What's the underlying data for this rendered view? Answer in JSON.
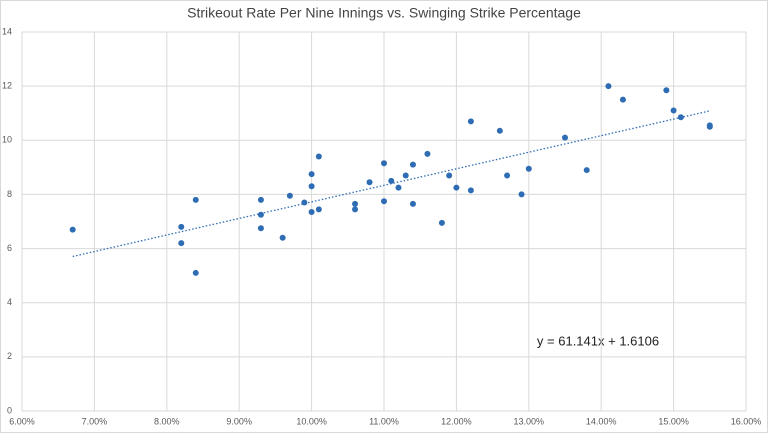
{
  "chart_data": {
    "type": "scatter",
    "title": "Strikeout Rate Per Nine Innings vs. Swinging Strike Percentage",
    "color": "#2e6db4",
    "grid": true,
    "xlim": [
      0.06,
      0.16
    ],
    "xticks": [
      {
        "value": 0.06,
        "label": "6.00%"
      },
      {
        "value": 0.07,
        "label": "7.00%"
      },
      {
        "value": 0.08,
        "label": "8.00%"
      },
      {
        "value": 0.09,
        "label": "9.00%"
      },
      {
        "value": 0.1,
        "label": "10.00%"
      },
      {
        "value": 0.11,
        "label": "11.00%"
      },
      {
        "value": 0.12,
        "label": "12.00%"
      },
      {
        "value": 0.13,
        "label": "13.00%"
      },
      {
        "value": 0.14,
        "label": "14.00%"
      },
      {
        "value": 0.15,
        "label": "15.00%"
      },
      {
        "value": 0.16,
        "label": "16.00%"
      }
    ],
    "ylim": [
      0,
      14
    ],
    "yticks": [
      0,
      2,
      4,
      6,
      8,
      10,
      12,
      14
    ],
    "x": [
      0.067,
      0.082,
      0.082,
      0.084,
      0.084,
      0.093,
      0.093,
      0.093,
      0.096,
      0.097,
      0.099,
      0.1,
      0.1,
      0.1,
      0.101,
      0.101,
      0.106,
      0.106,
      0.108,
      0.11,
      0.11,
      0.111,
      0.112,
      0.113,
      0.114,
      0.114,
      0.116,
      0.118,
      0.119,
      0.12,
      0.122,
      0.122,
      0.126,
      0.127,
      0.129,
      0.13,
      0.135,
      0.138,
      0.141,
      0.143,
      0.149,
      0.15,
      0.151,
      0.155,
      0.155
    ],
    "values": [
      6.7,
      6.8,
      6.2,
      7.8,
      5.1,
      7.8,
      7.25,
      6.75,
      6.4,
      7.95,
      7.7,
      8.75,
      8.3,
      7.35,
      9.4,
      7.45,
      7.65,
      7.45,
      8.45,
      9.15,
      7.75,
      8.5,
      8.25,
      8.7,
      9.1,
      7.65,
      9.5,
      6.95,
      8.7,
      8.25,
      10.7,
      8.15,
      10.35,
      8.7,
      8.0,
      8.95,
      10.1,
      8.9,
      12.0,
      11.5,
      11.85,
      11.1,
      10.85,
      10.55,
      10.5
    ],
    "trendline": {
      "label": "y = 61.141x + 1.6106",
      "slope": 61.141,
      "intercept": 1.6106
    }
  }
}
